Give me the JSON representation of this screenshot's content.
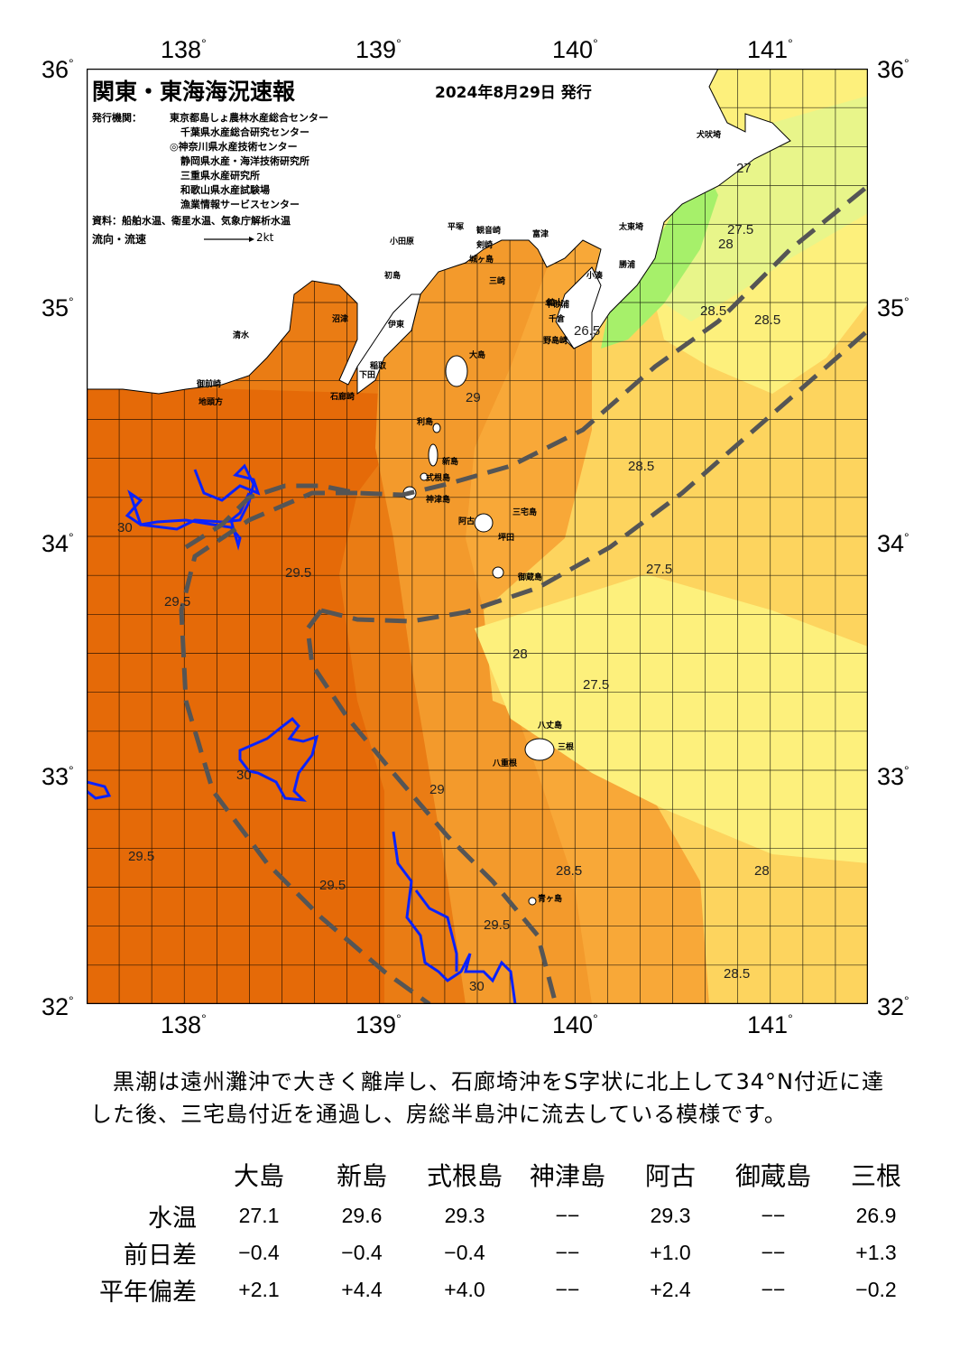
{
  "header": {
    "title": "関東・東海海況速報",
    "date": "2024年8月29日 発行",
    "issuer_label": "発行機関：",
    "issuers": [
      "東京都島しょ農林水産総合センター",
      "千葉県水産総合研究センター",
      "◎神奈川県水産技術センター",
      "静岡県水産・海洋技術研究所",
      "三重県水産研究所",
      "和歌山県水産試験場",
      "漁業情報サービスセンター"
    ],
    "sources": "資料：船舶水温、衛星水温、気象庁解析水温",
    "flow_label": "流向・流速",
    "flow_scale": "2kt"
  },
  "axes": {
    "lon_labels": [
      "138",
      "139",
      "140",
      "141"
    ],
    "lat_labels": [
      "36",
      "35",
      "34",
      "33",
      "32"
    ],
    "degree": "°"
  },
  "colors": {
    "t_lt26": "#a6f06a",
    "t_26_27": "#e8f58a",
    "t_27_275": "#fdf07c",
    "t_275_28": "#fdd45e",
    "t_28_285": "#f8a838",
    "t_285_29": "#f39a2c",
    "t_29_295": "#ea7c14",
    "t_gt295": "#e56a08",
    "isotherm_30": "#0a22ff",
    "kuroshio_axis": "#555555",
    "land": "#ffffff"
  },
  "places": [
    "犬吠埼",
    "太東埼",
    "勝浦",
    "小湊",
    "平砂浦",
    "千倉",
    "野島崎",
    "館山",
    "富津",
    "剣崎",
    "観音崎",
    "城ヶ島",
    "三崎",
    "平塚",
    "小田原",
    "初島",
    "伊東",
    "沼津",
    "清水",
    "御前崎",
    "地頭方",
    "下田",
    "石廊崎",
    "稲取",
    "大島",
    "利島",
    "新島",
    "式根島",
    "神津島",
    "三宅島",
    "阿古",
    "坪田",
    "御蔵島",
    "八丈島",
    "八重根",
    "三根",
    "青ヶ島"
  ],
  "isotherm_labels": [
    "26.5",
    "27",
    "27.5",
    "28",
    "28.5",
    "29",
    "29.5",
    "30"
  ],
  "summary": "　黒潮は遠州灘沖で大きく離岸し、石廊埼沖をS字状に北上して34°N付近に達した後、三宅島付近を通過し、房総半島沖に流去している模様です。",
  "table": {
    "columns": [
      "大島",
      "新島",
      "式根島",
      "神津島",
      "阿古",
      "御蔵島",
      "三根"
    ],
    "rows": [
      {
        "label": "水温",
        "values": [
          "27.1",
          "29.6",
          "29.3",
          "−−",
          "29.3",
          "−−",
          "26.9"
        ]
      },
      {
        "label": "前日差",
        "values": [
          "−0.4",
          "−0.4",
          "−0.4",
          "−−",
          "+1.0",
          "−−",
          "+1.3"
        ]
      },
      {
        "label": "平年偏差",
        "values": [
          "+2.1",
          "+4.4",
          "+4.0",
          "−−",
          "+2.4",
          "−−",
          "−0.2"
        ]
      }
    ]
  }
}
